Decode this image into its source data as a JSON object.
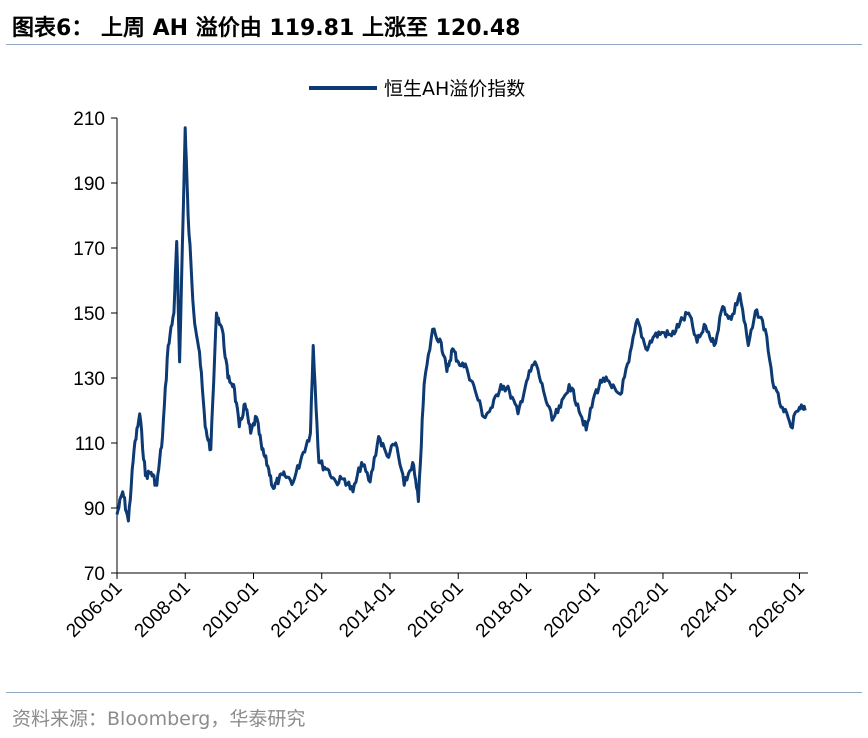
{
  "header": {
    "title": "图表6： 上周 AH 溢价由 119.81 上涨至 120.48"
  },
  "footer": {
    "source": "资料来源：Bloomberg，华泰研究"
  },
  "colors": {
    "series": "#0d3a73",
    "rule": "#8ea9c1",
    "source_text": "#8c8c8c"
  },
  "chart_data": {
    "type": "line",
    "title": "",
    "xlabel": "",
    "ylabel": "",
    "ylim": [
      70,
      210
    ],
    "yticks": [
      70,
      90,
      110,
      130,
      150,
      170,
      190,
      210
    ],
    "xlim": [
      "2006-01",
      "2026-04"
    ],
    "xticks": [
      "2006-01",
      "2008-01",
      "2010-01",
      "2012-01",
      "2014-01",
      "2016-01",
      "2018-01",
      "2020-01",
      "2022-01",
      "2024-01",
      "2026-01"
    ],
    "grid": false,
    "legend_position": "top-center",
    "series": [
      {
        "name": "恒生AH溢价指数",
        "x": [
          "2006-01",
          "2006-03",
          "2006-05",
          "2006-07",
          "2006-09",
          "2006-11",
          "2007-01",
          "2007-03",
          "2007-05",
          "2007-07",
          "2007-09",
          "2007-10",
          "2007-11",
          "2008-01",
          "2008-02",
          "2008-04",
          "2008-06",
          "2008-08",
          "2008-10",
          "2008-12",
          "2009-02",
          "2009-04",
          "2009-06",
          "2009-08",
          "2009-10",
          "2009-12",
          "2010-02",
          "2010-04",
          "2010-06",
          "2010-08",
          "2010-10",
          "2010-12",
          "2011-03",
          "2011-06",
          "2011-09",
          "2011-10",
          "2011-12",
          "2012-03",
          "2012-06",
          "2012-09",
          "2012-12",
          "2013-03",
          "2013-06",
          "2013-09",
          "2013-12",
          "2014-03",
          "2014-06",
          "2014-09",
          "2014-11",
          "2015-01",
          "2015-04",
          "2015-07",
          "2015-09",
          "2015-11",
          "2016-01",
          "2016-04",
          "2016-07",
          "2016-10",
          "2017-01",
          "2017-04",
          "2017-07",
          "2017-10",
          "2018-01",
          "2018-04",
          "2018-07",
          "2018-10",
          "2019-01",
          "2019-04",
          "2019-07",
          "2019-10",
          "2020-01",
          "2020-04",
          "2020-07",
          "2020-10",
          "2021-01",
          "2021-04",
          "2021-07",
          "2021-10",
          "2022-01",
          "2022-04",
          "2022-07",
          "2022-10",
          "2023-01",
          "2023-04",
          "2023-07",
          "2023-10",
          "2024-01",
          "2024-04",
          "2024-07",
          "2024-10",
          "2025-01",
          "2025-04",
          "2025-07",
          "2025-10",
          "2026-01",
          "2026-03"
        ],
        "values": [
          88,
          95,
          86,
          108,
          119,
          100,
          101,
          97,
          112,
          140,
          150,
          172,
          135,
          207,
          180,
          150,
          138,
          115,
          108,
          150,
          145,
          130,
          128,
          115,
          122,
          113,
          118,
          108,
          103,
          96,
          99,
          100,
          98,
          106,
          113,
          140,
          104,
          102,
          98,
          99,
          95,
          104,
          98,
          112,
          106,
          110,
          97,
          104,
          92,
          128,
          145,
          141,
          132,
          139,
          135,
          133,
          126,
          118,
          121,
          128,
          126,
          119,
          129,
          135,
          126,
          117,
          121,
          128,
          122,
          114,
          125,
          130,
          127,
          125,
          135,
          148,
          139,
          143,
          144,
          143,
          147,
          150,
          141,
          146,
          140,
          152,
          148,
          156,
          140,
          151,
          145,
          127,
          121,
          115,
          121,
          120
        ]
      }
    ]
  }
}
